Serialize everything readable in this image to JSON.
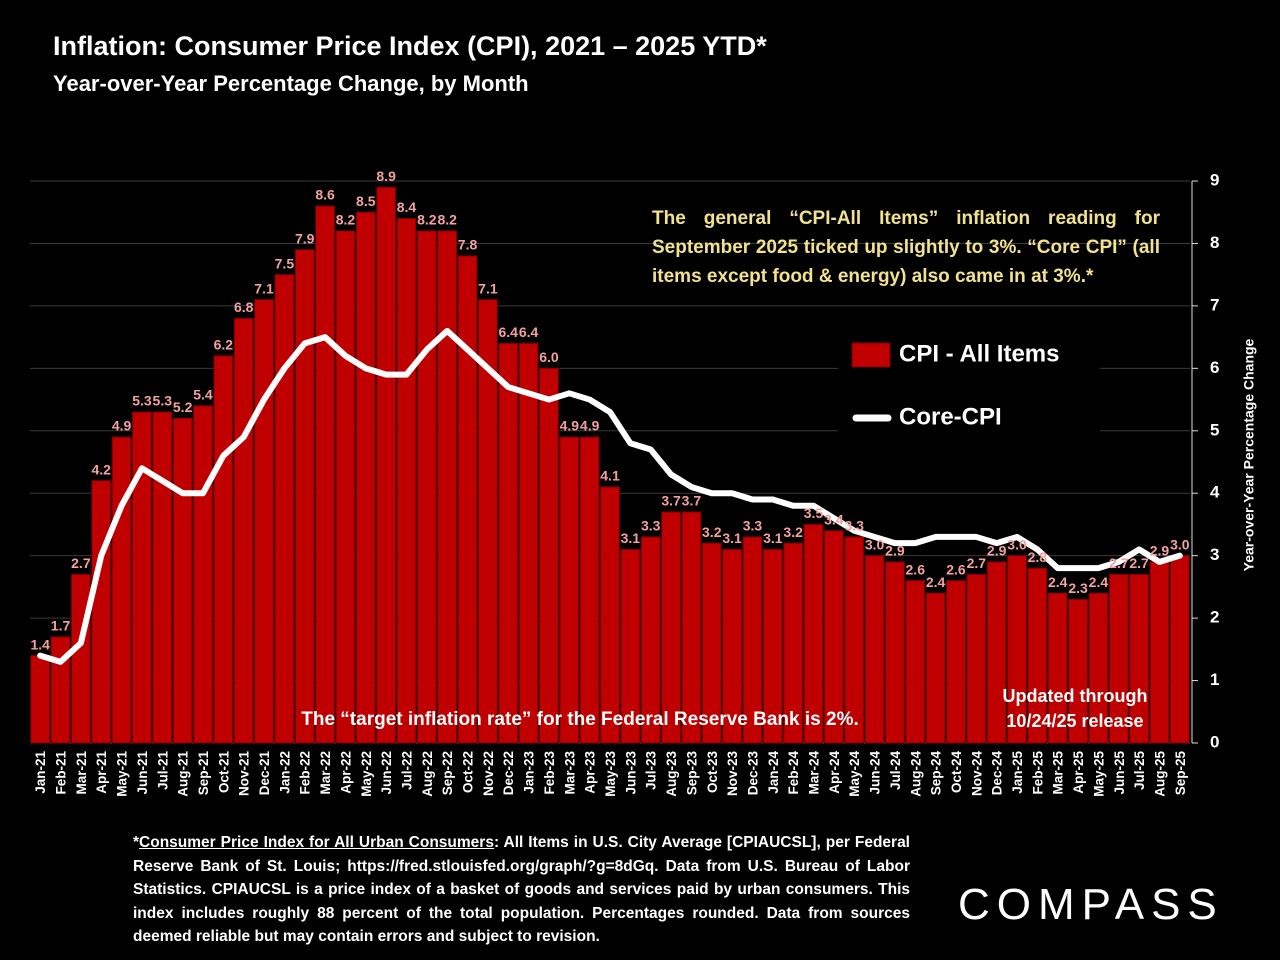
{
  "chart_data": {
    "type": "combo",
    "title": "Inflation: Consumer Price Index (CPI), 2021 – 2025 YTD*",
    "subtitle": "Year-over-Year Percentage Change, by Month",
    "y_axis_label": "Year-over-Year Percentage Change",
    "categories": [
      "Jan-21",
      "Feb-21",
      "Mar-21",
      "Apr-21",
      "May-21",
      "Jun-21",
      "Jul-21",
      "Aug-21",
      "Sep-21",
      "Oct-21",
      "Nov-21",
      "Dec-21",
      "Jan-22",
      "Feb-22",
      "Mar-22",
      "Apr-22",
      "May-22",
      "Jun-22",
      "Jul-22",
      "Aug-22",
      "Sep-22",
      "Oct-22",
      "Nov-22",
      "Dec-22",
      "Jan-23",
      "Feb-23",
      "Mar-23",
      "Apr-23",
      "May-23",
      "Jun-23",
      "Jul-23",
      "Aug-23",
      "Sep-23",
      "Oct-23",
      "Nov-23",
      "Dec-23",
      "Jan-24",
      "Feb-24",
      "Mar-24",
      "Apr-24",
      "May-24",
      "Jun-24",
      "Jul-24",
      "Aug-24",
      "Sep-24",
      "Oct-24",
      "Nov-24",
      "Dec-24",
      "Jan-25",
      "Feb-25",
      "Mar-25",
      "Apr-25",
      "May-25",
      "Jun-25",
      "Jul-25",
      "Aug-25",
      "Sep-25"
    ],
    "series": [
      {
        "name": "CPI - All Items",
        "type": "bar",
        "color": "#c00000",
        "values": [
          1.4,
          1.7,
          2.7,
          4.2,
          4.9,
          5.3,
          5.3,
          5.2,
          5.4,
          6.2,
          6.8,
          7.1,
          7.5,
          7.9,
          8.6,
          8.2,
          8.5,
          8.9,
          8.4,
          8.2,
          8.2,
          7.8,
          7.1,
          6.4,
          6.4,
          6.0,
          4.9,
          4.9,
          4.1,
          3.1,
          3.3,
          3.7,
          3.7,
          3.2,
          3.1,
          3.3,
          3.1,
          3.2,
          3.5,
          3.4,
          3.3,
          3.0,
          2.9,
          2.6,
          2.4,
          2.6,
          2.7,
          2.9,
          3.0,
          2.8,
          2.4,
          2.3,
          2.4,
          2.7,
          2.7,
          2.9,
          3.0
        ],
        "value_labels": [
          "1.4",
          "1.7",
          "2.7",
          "4.2",
          "4.9",
          "5.3",
          "5.3",
          "5.2",
          "5.4",
          "6.2",
          "6.8",
          "7.1",
          "7.5",
          "7.9",
          "8.6",
          "8.2",
          "8.5",
          "8.9",
          "8.4",
          "8.2",
          "8.2",
          "7.8",
          "7.1",
          "6.4",
          "6.4",
          "6.0",
          "4.9",
          "4.9",
          "4.1",
          "3.1",
          "3.3",
          "3.7",
          "3.7",
          "3.2",
          "3.1",
          "3.3",
          "3.1",
          "3.2",
          "3.5",
          "3.4",
          "3.3",
          "3.0",
          "2.9",
          "2.6",
          "2.4",
          "2.6",
          "2.7",
          "2.9",
          "3.0",
          "2.8",
          "2.4",
          "2.3",
          "2.4",
          "2.7",
          "2.7",
          "2.9",
          "3.0"
        ]
      },
      {
        "name": "Core-CPI",
        "type": "line",
        "color": "#ffffff",
        "values": [
          1.4,
          1.3,
          1.6,
          3.0,
          3.8,
          4.4,
          4.2,
          4.0,
          4.0,
          4.6,
          4.9,
          5.5,
          6.0,
          6.4,
          6.5,
          6.2,
          6.0,
          5.9,
          5.9,
          6.3,
          6.6,
          6.3,
          6.0,
          5.7,
          5.6,
          5.5,
          5.6,
          5.5,
          5.3,
          4.8,
          4.7,
          4.3,
          4.1,
          4.0,
          4.0,
          3.9,
          3.9,
          3.8,
          3.8,
          3.6,
          3.4,
          3.3,
          3.2,
          3.2,
          3.3,
          3.3,
          3.3,
          3.2,
          3.3,
          3.1,
          2.8,
          2.8,
          2.8,
          2.9,
          3.1,
          2.9,
          3.0
        ]
      }
    ],
    "ylim": [
      0,
      9
    ],
    "yticks": [
      0,
      1,
      2,
      3,
      4,
      5,
      6,
      7,
      8,
      9
    ],
    "grid": true,
    "legend_position": "right",
    "annotations": {
      "note": "The general “CPI-All Items” inflation reading for September 2025 ticked up slightly to 3%. “Core CPI” (all items except food & energy) also came in at 3%.*",
      "target": "The “target inflation rate” for the Federal Reserve Bank is 2%.",
      "updated": [
        "Updated through",
        "10/24/25 release"
      ]
    }
  },
  "footnote": [
    "*",
    "Consumer Price Index for All Urban Consumers",
    ": All Items in U.S. City Average [CPIAUCSL], per Federal Reserve Bank of St. Louis; https://fred.stlouisfed.org/graph/?g=8dGq. Data from U.S. Bureau of Labor Statistics. CPIAUCSL is a price index of a basket of goods and services paid by urban consumers. This index includes roughly 88 percent of the total population. Percentages rounded. Data from sources deemed reliable but may contain errors and subject to revision."
  ],
  "logo": "COMPASS"
}
